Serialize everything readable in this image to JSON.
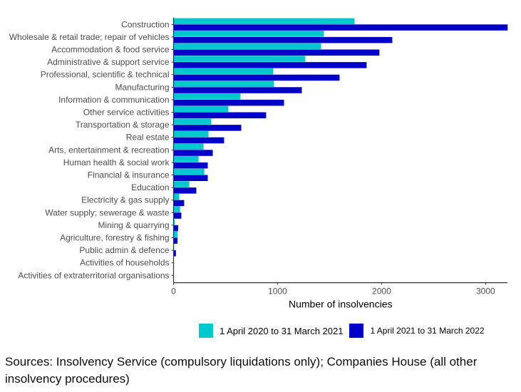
{
  "chart_data": {
    "type": "bar",
    "orientation": "horizontal",
    "title": "",
    "xlabel": "Number of insolvencies",
    "ylabel": "",
    "xlim": [
      0,
      3210
    ],
    "xticks": [
      0,
      1000,
      2000,
      3000
    ],
    "grid": false,
    "legend_position": "bottom",
    "categories": [
      "Construction",
      "Wholesale & retail trade; repair of vehicles",
      "Accommodation & food service",
      "Administrative & support service",
      "Professional, scientific & technical",
      "Manufacturing",
      "Information & communication",
      "Other service activities",
      "Transportation & storage",
      "Real estate",
      "Arts, entertainment & recreation",
      "Human health & social work",
      "Financial & insurance",
      "Education",
      "Electricity & gas supply",
      "Water supply; sewerage & waste",
      "Mining & quarrying",
      "Agriculture, forestry & fishing",
      "Public admin & defence",
      "Activities of households",
      "Activities of extraterritorial organisations"
    ],
    "series": [
      {
        "name": "1 April 2020 to 31 March 2021",
        "color": "#00c8cc",
        "values": [
          1740,
          1445,
          1418,
          1267,
          959,
          966,
          644,
          527,
          363,
          336,
          288,
          240,
          295,
          151,
          55,
          63,
          10,
          38,
          5,
          0,
          0
        ]
      },
      {
        "name": "1 April 2021 to 31 March 2022",
        "color": "#0000c8",
        "values": [
          3212,
          2103,
          1979,
          1856,
          1596,
          1233,
          1062,
          890,
          651,
          486,
          377,
          329,
          329,
          219,
          102,
          75,
          45,
          38,
          23,
          2,
          0
        ]
      }
    ]
  },
  "legend": {
    "items": [
      {
        "label": "1 April 2020 to 31 March 2021",
        "color": "#00c8cc"
      },
      {
        "label": "1 April 2021 to 31 March 2022",
        "color": "#0000c8"
      }
    ]
  },
  "source_note": "Sources: Insolvency Service (compulsory liquidations only); Companies House (all other insolvency procedures)"
}
